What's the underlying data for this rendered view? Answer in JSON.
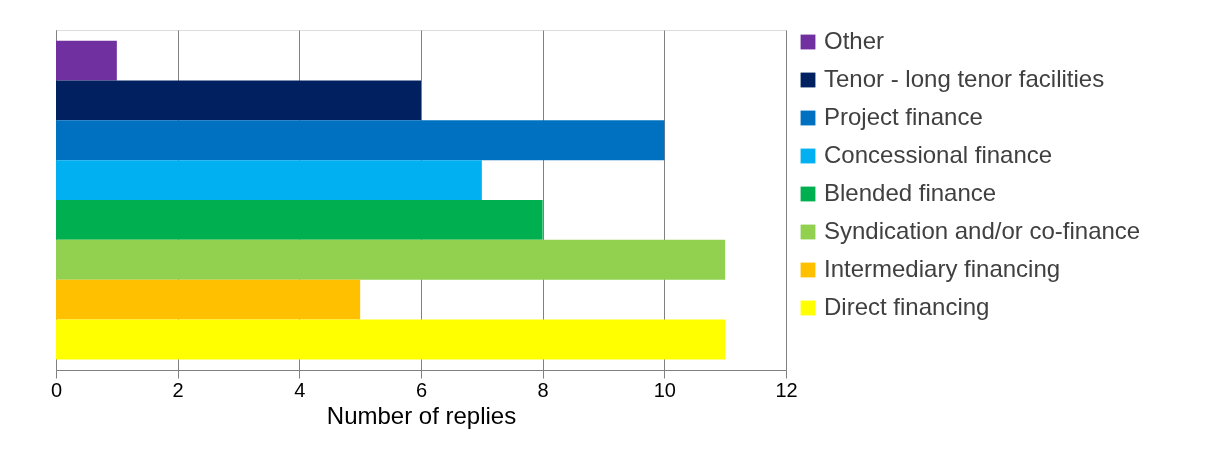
{
  "chart_data": {
    "type": "bar",
    "orientation": "horizontal",
    "xlabel": "Number of replies",
    "categories": [
      null
    ],
    "series": [
      {
        "name": "Other",
        "color": "#7030a0",
        "values": [
          1
        ]
      },
      {
        "name": "Tenor  - long tenor facilities",
        "color": "#002060",
        "values": [
          6
        ]
      },
      {
        "name": "Project finance",
        "color": "#0070c0",
        "values": [
          10
        ]
      },
      {
        "name": "Concessional finance",
        "color": "#00b0f0",
        "values": [
          7
        ]
      },
      {
        "name": "Blended finance",
        "color": "#00b050",
        "values": [
          8
        ]
      },
      {
        "name": "Syndication and/or co-finance",
        "color": "#92d050",
        "values": [
          11
        ]
      },
      {
        "name": "Intermediary financing",
        "color": "#ffc000",
        "values": [
          5
        ]
      },
      {
        "name": "Direct financing",
        "color": "#ffff00",
        "values": [
          11
        ]
      }
    ],
    "xlim": [
      0,
      12
    ],
    "xticks": [
      0,
      2,
      4,
      6,
      8,
      10,
      12
    ],
    "grid": "x",
    "legend": "right",
    "tick_labels": "x"
  }
}
